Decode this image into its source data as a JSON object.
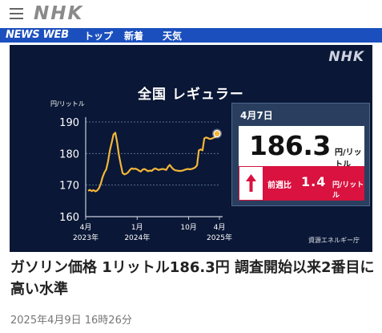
{
  "header": {
    "logo": "NHK",
    "menu_icon": "hamburger-menu-icon"
  },
  "nav": {
    "brand": "NEWS WEB",
    "links": [
      "トップ",
      "新着",
      "天気"
    ]
  },
  "graphic": {
    "logo": "NHK",
    "title": "全国 レギュラー",
    "source": "資源エネルギー庁",
    "panel": {
      "date": "4月7日",
      "price": "186.3",
      "unit": "円/リットル",
      "diff_label": "前週比",
      "diff": "1.4",
      "diff_unit": "円/リットル",
      "direction": "up"
    }
  },
  "chart_data": {
    "type": "line",
    "ylabel": "円/リットル",
    "ylim": [
      160,
      190
    ],
    "yticks": [
      160,
      170,
      180,
      190
    ],
    "xtick_labels": [
      {
        "month": "4月",
        "year": "2023年"
      },
      {
        "month": "1月",
        "year": "2024年"
      },
      {
        "month": "10月",
        "year": ""
      },
      {
        "month": "4月",
        "year": "2025年"
      }
    ],
    "series_color": "#f3b63a",
    "grid": true,
    "series": [
      {
        "values": [
          168.2,
          168.5,
          168.1,
          168.4,
          168.0,
          168.3,
          169.0,
          170.5,
          172.5,
          174.0,
          175.0,
          177.5,
          181.0,
          183.5,
          186.0,
          186.6,
          183.5,
          179.5,
          176.5,
          173.8,
          173.4,
          173.6,
          174.0,
          174.8,
          175.3,
          175.1,
          175.2,
          175.0,
          174.6,
          174.3,
          174.9,
          175.1,
          174.8,
          174.4,
          174.6,
          174.5,
          175.0,
          175.3,
          175.0,
          174.8,
          175.0,
          175.1,
          175.0,
          174.8,
          175.8,
          176.4,
          175.6,
          175.0,
          174.7,
          174.6,
          174.5,
          174.5,
          174.6,
          174.8,
          175.0,
          175.1,
          175.0,
          175.1,
          175.3,
          175.6,
          176.3,
          181.0,
          181.3,
          181.0,
          184.8,
          185.1,
          184.9,
          184.6,
          184.7,
          185.0,
          185.2,
          186.3
        ]
      }
    ]
  },
  "headline": "ガソリン価格 1リットル186.3円 調査開始以来2番目に高い水準",
  "timestamp": "2025年4月9日 16時26分"
}
